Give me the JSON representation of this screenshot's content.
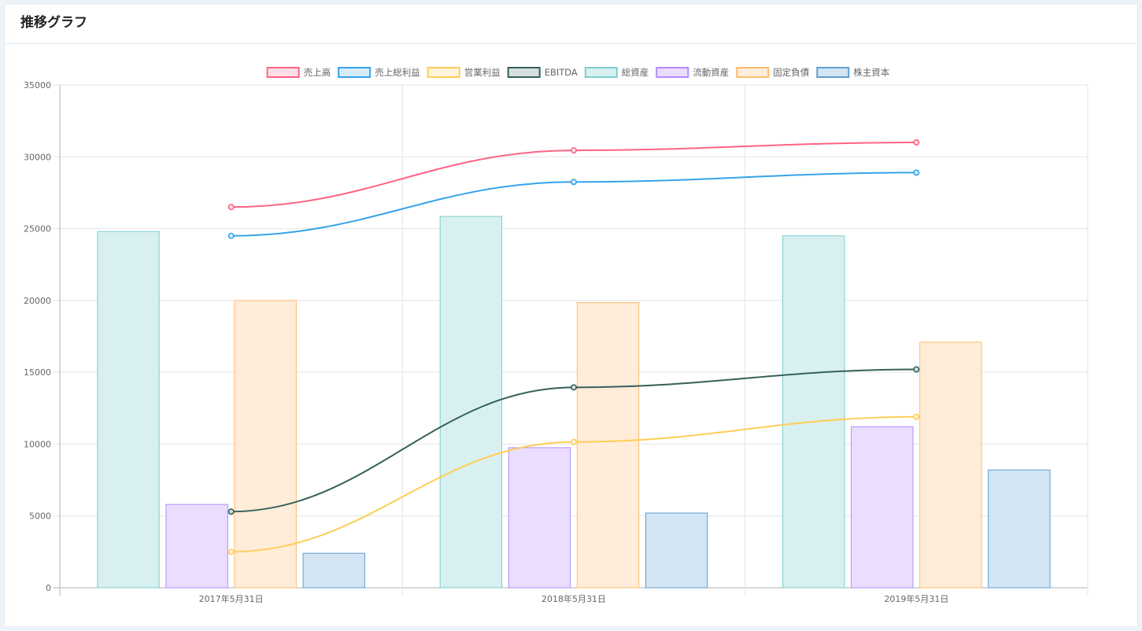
{
  "card": {
    "title": "推移グラフ"
  },
  "chart_data": {
    "type": "bar",
    "categories": [
      "2017年5月31日",
      "2018年5月31日",
      "2019年5月31日"
    ],
    "ylim": [
      0,
      35000
    ],
    "yticks": [
      0,
      5000,
      10000,
      15000,
      20000,
      25000,
      30000,
      35000
    ],
    "grid": true,
    "legend_position": "top",
    "series": [
      {
        "name": "売上高",
        "type": "line",
        "values": [
          26500,
          30450,
          31000
        ],
        "color": "#ff6384",
        "fill": "#ffe0e6"
      },
      {
        "name": "売上総利益",
        "type": "line",
        "values": [
          24500,
          28250,
          28900
        ],
        "color": "#36a2eb",
        "fill": "#d7ecfb"
      },
      {
        "name": "営業利益",
        "type": "line",
        "values": [
          2500,
          10150,
          11900
        ],
        "color": "#ffcd56",
        "fill": "#fff5dd"
      },
      {
        "name": "EBITDA",
        "type": "line",
        "values": [
          5300,
          13950,
          15200
        ],
        "color": "#35605a",
        "fill": "#d7dfde"
      },
      {
        "name": "総資産",
        "type": "bar",
        "values": [
          24800,
          25850,
          24500
        ],
        "color": "#7ecece",
        "fill": "#d8f0f0"
      },
      {
        "name": "流動資産",
        "type": "bar",
        "values": [
          5800,
          9750,
          11200
        ],
        "color": "#b28bff",
        "fill": "#eaddff"
      },
      {
        "name": "固定負債",
        "type": "bar",
        "values": [
          20000,
          19850,
          17100
        ],
        "color": "#ffbb6e",
        "fill": "#ffecd9"
      },
      {
        "name": "株主資本",
        "type": "bar",
        "values": [
          2400,
          5200,
          8200
        ],
        "color": "#5f9fd1",
        "fill": "#d3e5f3"
      }
    ]
  }
}
